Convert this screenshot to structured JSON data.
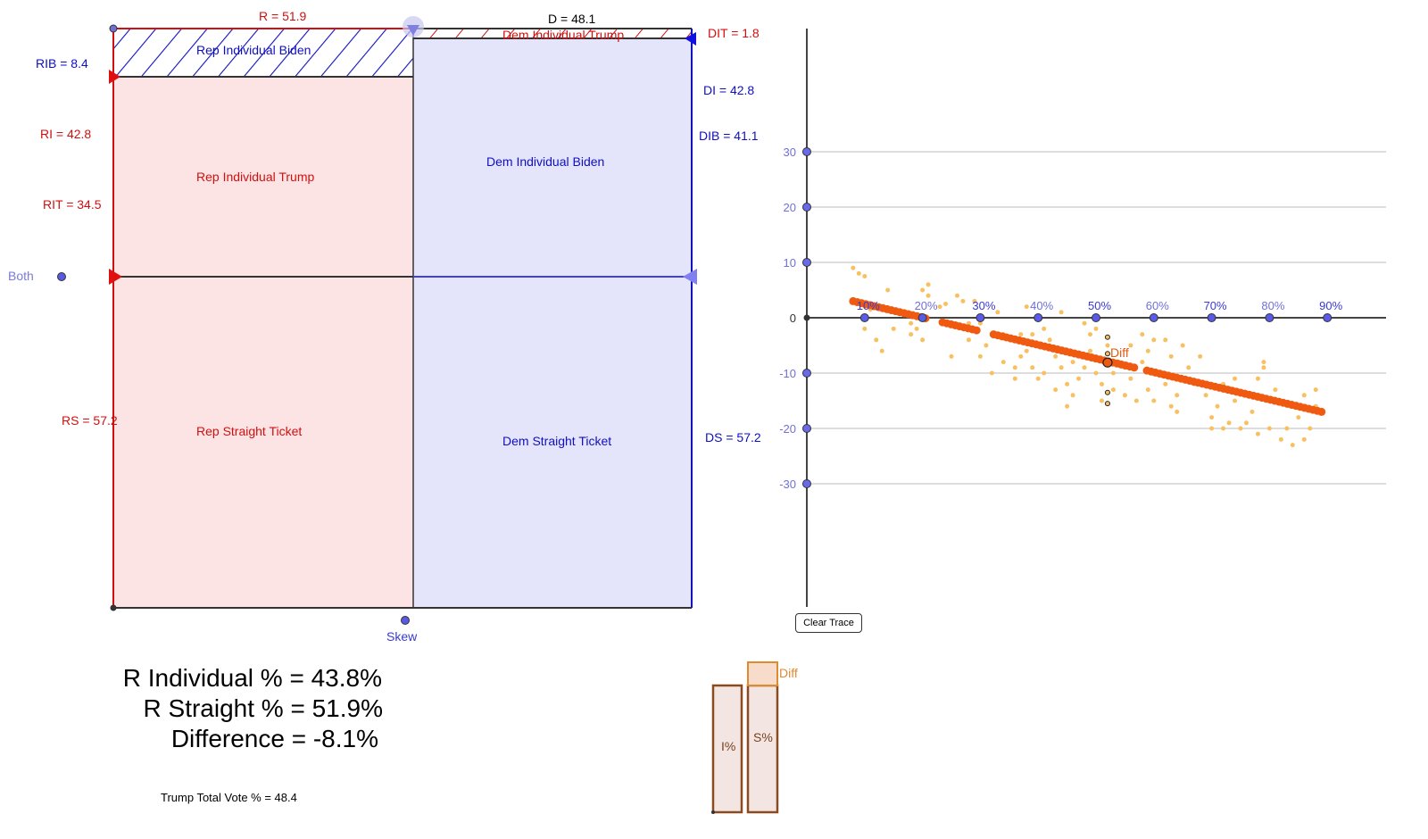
{
  "diagram": {
    "labels": {
      "R": "R = 51.9",
      "D": "D = 48.1",
      "DIT": "DIT = 1.8",
      "RIB": "RIB = 8.4",
      "RI": "RI = 42.8",
      "RIT": "RIT = 34.5",
      "RS": "RS = 57.2",
      "DI": "DI = 42.8",
      "DIB": "DIB = 41.1",
      "DS": "DS = 57.2",
      "both": "Both",
      "skew": "Skew"
    },
    "regions": {
      "rep_individual_biden": "Rep Individual Biden",
      "dem_individual_trump": "Dem Individual Trump",
      "rep_individual_trump": "Rep Individual Trump",
      "dem_individual_biden": "Dem Individual Biden",
      "rep_straight": "Rep Straight Ticket",
      "dem_straight": "Dem Straight Ticket"
    },
    "colors": {
      "rep": "#d01010",
      "dem": "#1010c0",
      "rep_fill": "#fde4e4",
      "dem_fill": "#e4e4fb"
    }
  },
  "results": {
    "r_individual": "R Individual % = 43.8%",
    "r_straight": "R Straight % = 51.9%",
    "difference": "Difference = -8.1%",
    "trump_total": "Trump Total Vote % = 48.4"
  },
  "bars": {
    "i_label": "I%",
    "s_label": "S%",
    "diff_label": "Diff",
    "i_value": 43.8,
    "s_value": 51.9
  },
  "clear_trace": "Clear Trace",
  "chart_data": {
    "type": "scatter",
    "y_ticks": [
      "30",
      "20",
      "10",
      "0",
      "-10",
      "-20",
      "-30"
    ],
    "x_ticks": [
      "10%",
      "20%",
      "30%",
      "40%",
      "50%",
      "60%",
      "70%",
      "80%",
      "90%"
    ],
    "point_label": "Diff",
    "current_point": [
      52,
      -8.1
    ],
    "trend_trace": {
      "from": [
        8,
        3
      ],
      "to": [
        89,
        -17
      ]
    },
    "scatter": [
      [
        8,
        9
      ],
      [
        9,
        8
      ],
      [
        10,
        7.5
      ],
      [
        10,
        2
      ],
      [
        11,
        1.5
      ],
      [
        10,
        -2
      ],
      [
        12,
        -4
      ],
      [
        13,
        -6
      ],
      [
        14,
        5
      ],
      [
        15,
        1
      ],
      [
        15,
        -2
      ],
      [
        18,
        -1
      ],
      [
        18,
        -3
      ],
      [
        19,
        -2
      ],
      [
        20,
        5
      ],
      [
        21,
        6
      ],
      [
        21,
        4
      ],
      [
        20,
        -4
      ],
      [
        23,
        2
      ],
      [
        24,
        2.5
      ],
      [
        25,
        -7
      ],
      [
        26,
        4
      ],
      [
        27,
        3
      ],
      [
        28,
        -1
      ],
      [
        28,
        -4
      ],
      [
        29,
        3
      ],
      [
        30,
        -1
      ],
      [
        31,
        -5
      ],
      [
        30,
        -7
      ],
      [
        32,
        -10
      ],
      [
        33,
        1
      ],
      [
        34,
        -3
      ],
      [
        34,
        -8
      ],
      [
        36,
        -9
      ],
      [
        36,
        -11
      ],
      [
        37,
        -3
      ],
      [
        37,
        -7
      ],
      [
        38,
        2
      ],
      [
        38,
        -6
      ],
      [
        39,
        -3
      ],
      [
        39,
        -9
      ],
      [
        40,
        -11
      ],
      [
        41,
        -2
      ],
      [
        41,
        -10
      ],
      [
        42,
        -4
      ],
      [
        43,
        -13
      ],
      [
        43,
        -7
      ],
      [
        44,
        -9
      ],
      [
        44,
        1
      ],
      [
        45,
        -12
      ],
      [
        45,
        -16
      ],
      [
        46,
        -8
      ],
      [
        46,
        -14
      ],
      [
        47,
        -11
      ],
      [
        48,
        -9
      ],
      [
        48,
        -1
      ],
      [
        49,
        -3
      ],
      [
        49,
        -6
      ],
      [
        50,
        -2
      ],
      [
        50,
        -10
      ],
      [
        51,
        -12
      ],
      [
        51,
        -15
      ],
      [
        52,
        -5
      ],
      [
        53,
        -13
      ],
      [
        53,
        -10
      ],
      [
        54,
        -8
      ],
      [
        55,
        -14
      ],
      [
        55,
        -9
      ],
      [
        56,
        -11
      ],
      [
        56,
        -5
      ],
      [
        57,
        -15
      ],
      [
        58,
        -3
      ],
      [
        58,
        -8
      ],
      [
        59,
        -13
      ],
      [
        59,
        -6
      ],
      [
        60,
        -15
      ],
      [
        60,
        -4
      ],
      [
        61,
        -10
      ],
      [
        62,
        -12
      ],
      [
        62,
        -4
      ],
      [
        63,
        -16
      ],
      [
        63,
        -7
      ],
      [
        64,
        -14
      ],
      [
        64,
        -17
      ],
      [
        65,
        -11
      ],
      [
        65,
        -5
      ],
      [
        66,
        -9
      ],
      [
        67,
        -12
      ],
      [
        68,
        -7
      ],
      [
        69,
        -14
      ],
      [
        70,
        -18
      ],
      [
        70,
        -20
      ],
      [
        71,
        -16
      ],
      [
        72,
        -12
      ],
      [
        72,
        -20
      ],
      [
        73,
        -19
      ],
      [
        74,
        -11
      ],
      [
        74,
        -15
      ],
      [
        75,
        -20
      ],
      [
        76,
        -19
      ],
      [
        77,
        -17
      ],
      [
        78,
        -11
      ],
      [
        78,
        -21
      ],
      [
        79,
        -8
      ],
      [
        79,
        -9
      ],
      [
        80,
        -20
      ],
      [
        81,
        -13
      ],
      [
        82,
        -22
      ],
      [
        83,
        -20
      ],
      [
        84,
        -23
      ],
      [
        85,
        -18
      ],
      [
        86,
        -22
      ],
      [
        86,
        -14
      ],
      [
        87,
        -20
      ],
      [
        88,
        -16
      ],
      [
        88,
        -13
      ]
    ]
  }
}
